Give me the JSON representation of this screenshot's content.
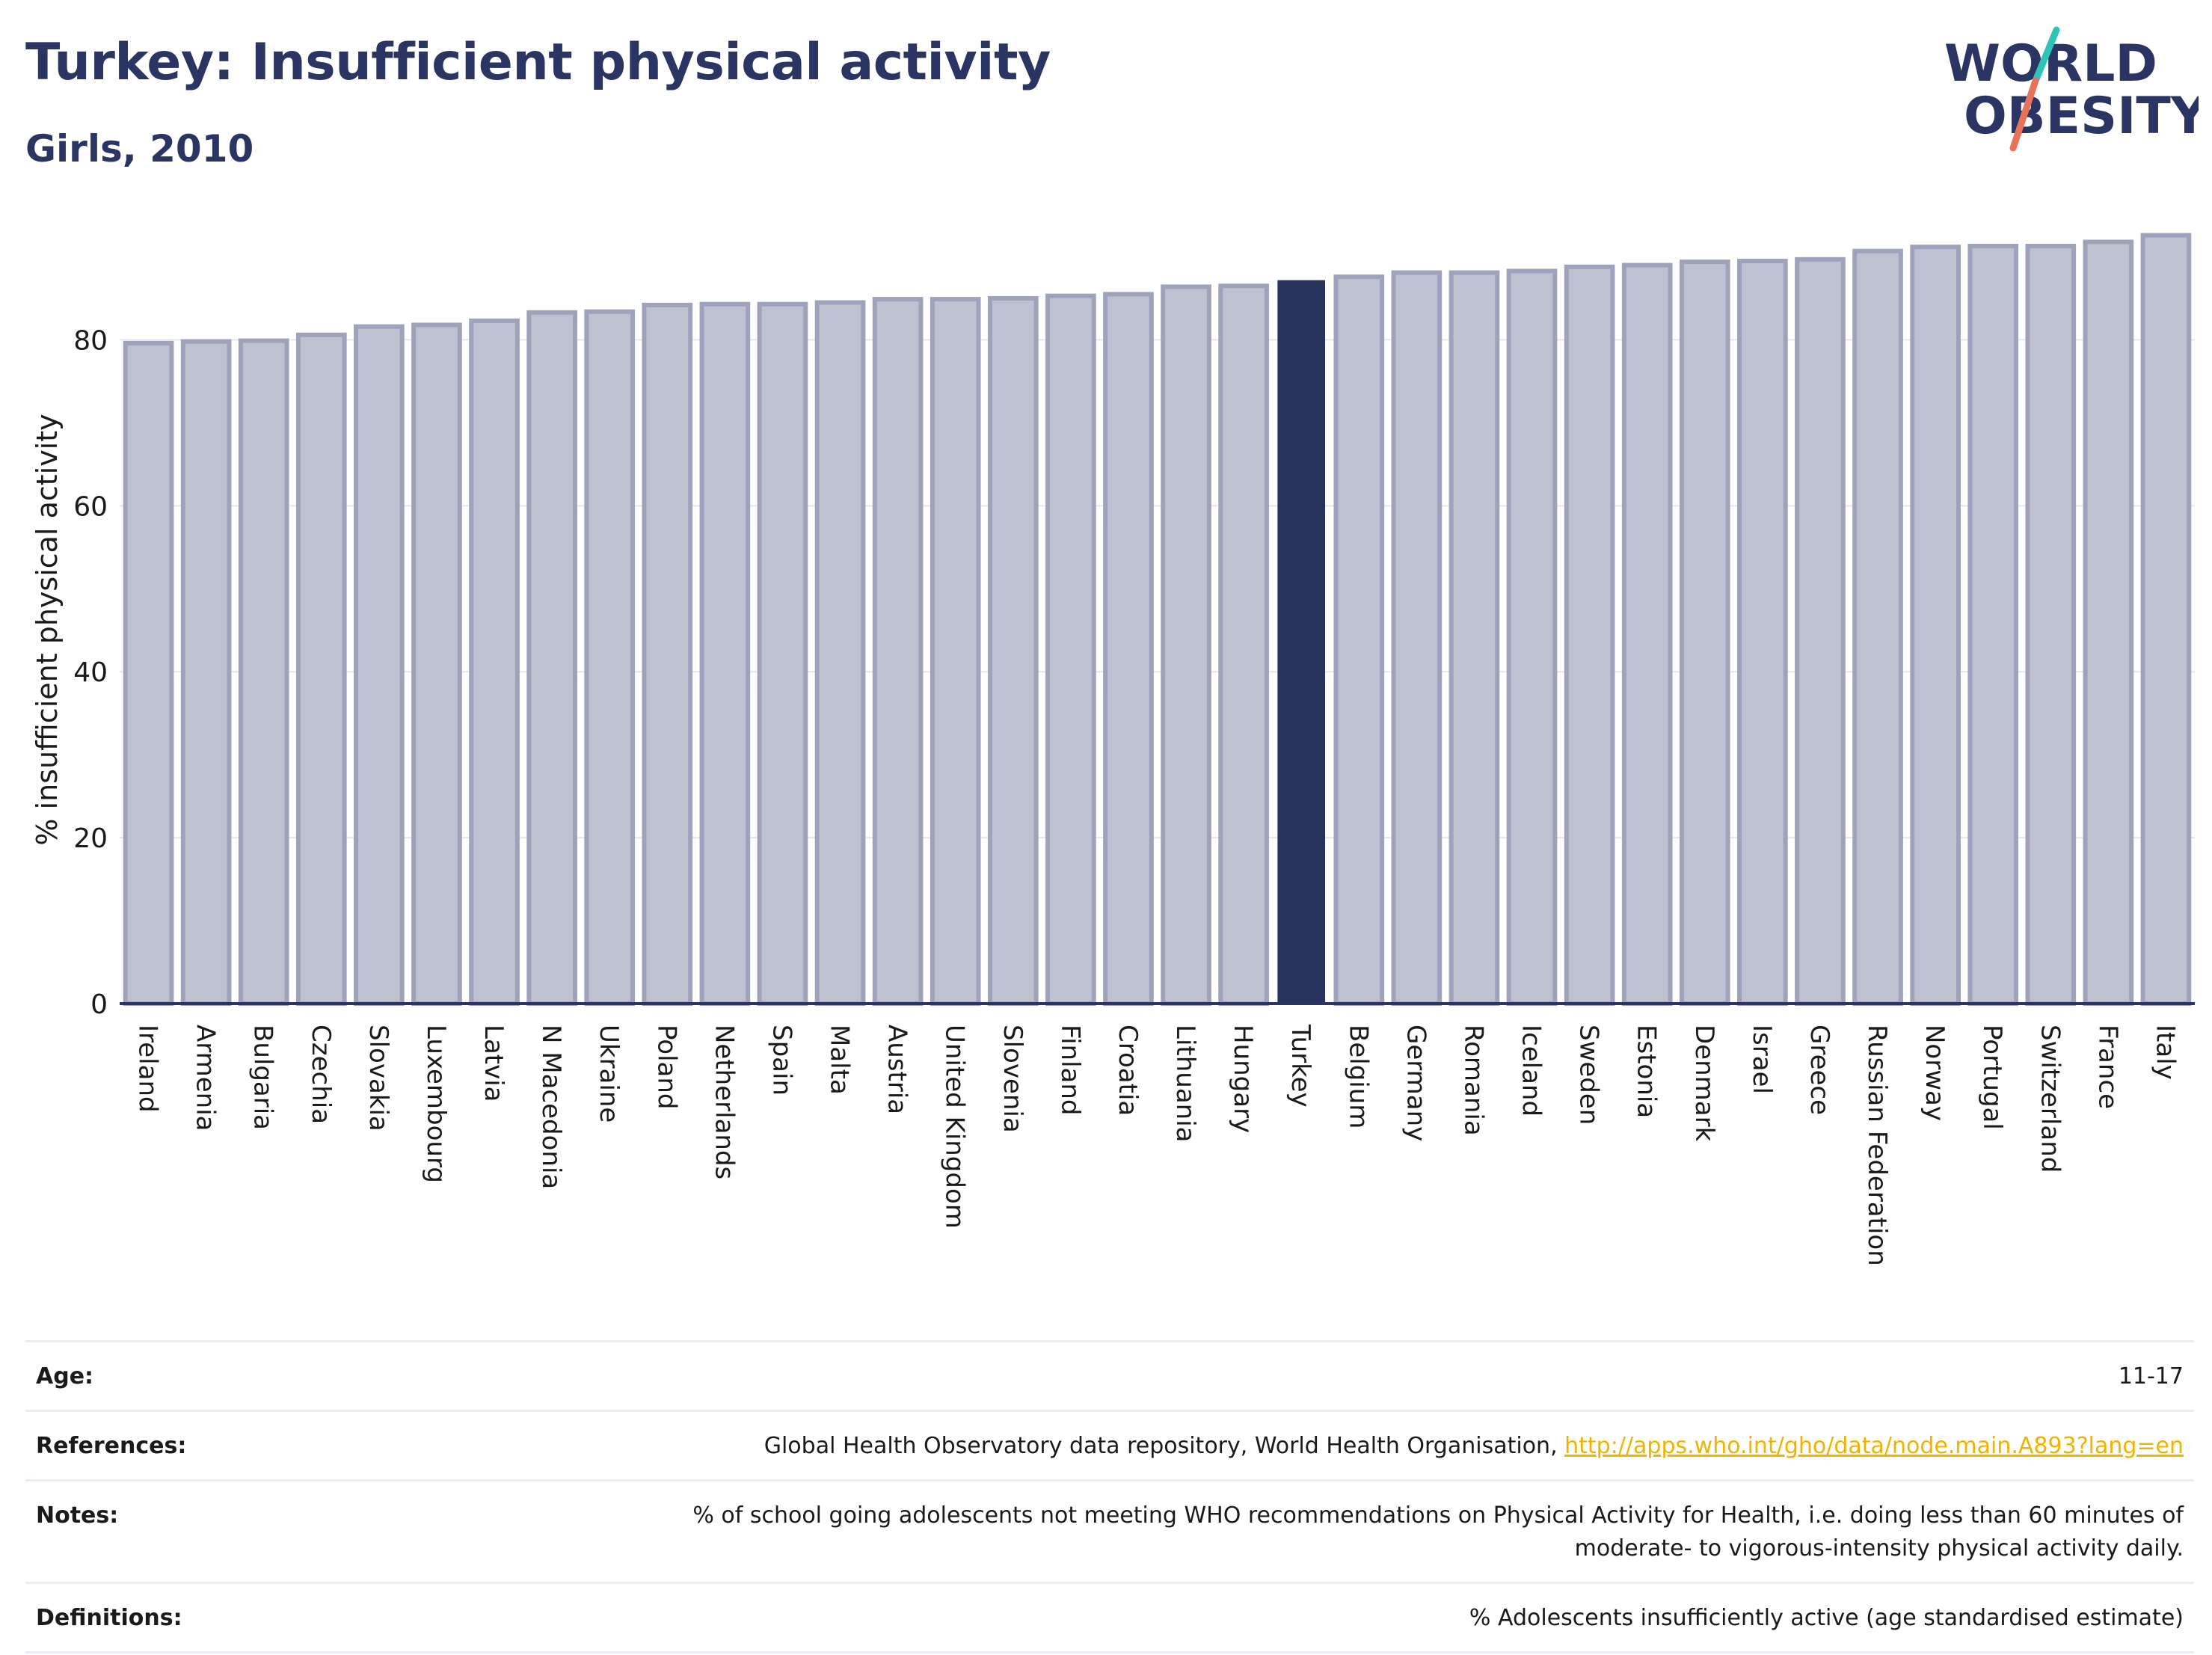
{
  "header": {
    "title": "Turkey: Insufficient physical activity",
    "subtitle": "Girls, 2010"
  },
  "logo": {
    "line1": "WORLD",
    "line2": "OBESITY",
    "text_color": "#2a3563",
    "slash_color_top": "#2ec4b6",
    "slash_color_bottom": "#e8735a"
  },
  "chart_data": {
    "type": "bar",
    "ylabel": "% insufficient physical activity",
    "ylim": [
      0,
      95
    ],
    "yticks": [
      0,
      20,
      40,
      60,
      80
    ],
    "grid": true,
    "highlight": "Turkey",
    "highlight_color": "#28335e",
    "bar_color": "#bec1d0",
    "bar_edge_color": "#9ea3bb",
    "categories": [
      "Ireland",
      "Armenia",
      "Bulgaria",
      "Czechia",
      "Slovakia",
      "Luxembourg",
      "Latvia",
      "N Macedonia",
      "Ukraine",
      "Poland",
      "Netherlands",
      "Spain",
      "Malta",
      "Austria",
      "United Kingdom",
      "Slovenia",
      "Finland",
      "Croatia",
      "Lithuania",
      "Hungary",
      "Turkey",
      "Belgium",
      "Germany",
      "Romania",
      "Iceland",
      "Sweden",
      "Estonia",
      "Denmark",
      "Israel",
      "Greece",
      "Russian Federation",
      "Norway",
      "Portugal",
      "Switzerland",
      "France",
      "Italy"
    ],
    "values": [
      79.6,
      79.8,
      79.9,
      80.6,
      81.6,
      81.8,
      82.3,
      83.3,
      83.4,
      84.2,
      84.3,
      84.3,
      84.5,
      84.9,
      84.9,
      85.0,
      85.3,
      85.5,
      86.4,
      86.5,
      87.1,
      87.6,
      88.1,
      88.1,
      88.3,
      88.8,
      89.0,
      89.4,
      89.5,
      89.7,
      90.7,
      91.2,
      91.3,
      91.3,
      91.8,
      92.6
    ]
  },
  "info_table": {
    "age_label": "Age:",
    "age_value": "11-17",
    "references_label": "References:",
    "references_text": "Global Health Observatory data repository, World Health Organisation, ",
    "references_link": "http://apps.who.int/gho/data/node.main.A893?lang=en",
    "notes_label": "Notes:",
    "notes_line1": "% of school going adolescents not meeting WHO recommendations on Physical Activity for Health, i.e. doing less than 60 minutes of",
    "notes_line2": "moderate- to vigorous-intensity physical activity daily.",
    "definitions_label": "Definitions:",
    "definitions_value": "% Adolescents insufficiently active (age standardised estimate)"
  }
}
